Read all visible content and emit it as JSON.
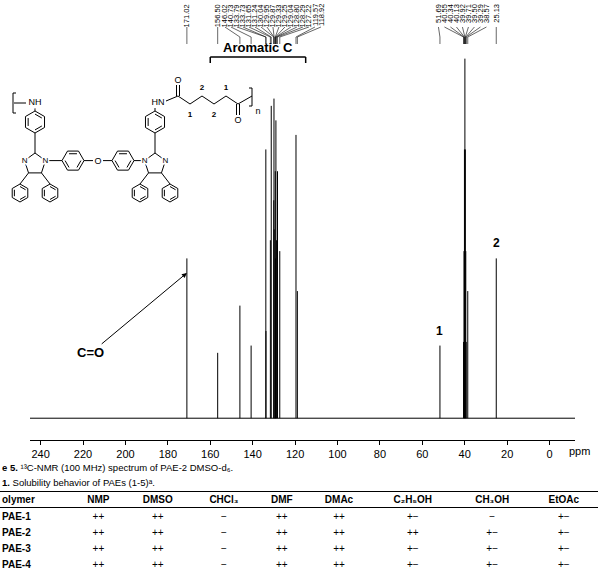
{
  "chart_data": {
    "type": "line",
    "x_label": "ppm",
    "xlim": [
      245,
      -12
    ],
    "xticks": [
      240,
      220,
      200,
      180,
      160,
      140,
      120,
      100,
      80,
      60,
      40,
      20,
      0
    ],
    "ylim": [
      -6,
      100
    ],
    "tick_labels": "x",
    "grid": false,
    "color": "#000000",
    "peaks": [
      {
        "shift": "171.02",
        "height": 44
      },
      {
        "shift": "156.50",
        "height": 18
      },
      {
        "shift": "146.02",
        "height": 31
      },
      {
        "shift": "140.73",
        "height": 20
      },
      {
        "shift": "133.79",
        "height": 74
      },
      {
        "shift": "133.73",
        "height": 24
      },
      {
        "shift": "131.65",
        "height": 49
      },
      {
        "shift": "131.24",
        "height": 86
      },
      {
        "shift": "130.04",
        "height": 60
      },
      {
        "shift": "129.95",
        "height": 88
      },
      {
        "shift": "129.87",
        "height": 52
      },
      {
        "shift": "129.33",
        "height": 68
      },
      {
        "shift": "129.25",
        "height": 44
      },
      {
        "shift": "129.04",
        "height": 82
      },
      {
        "shift": "128.80",
        "height": 49
      },
      {
        "shift": "128.29",
        "height": 68
      },
      {
        "shift": "127.22",
        "height": 46
      },
      {
        "shift": "119.57",
        "height": 78
      },
      {
        "shift": "118.92",
        "height": 35
      },
      {
        "shift": "51.69",
        "height": 20
      },
      {
        "shift": "40.55",
        "height": 21
      },
      {
        "shift": "40.34",
        "height": 46
      },
      {
        "shift": "40.13",
        "height": 74
      },
      {
        "shift": "39.92",
        "height": 99
      },
      {
        "shift": "39.71",
        "height": 74
      },
      {
        "shift": "39.50",
        "height": 46
      },
      {
        "shift": "39.29",
        "height": 21
      },
      {
        "shift": "38.57",
        "height": 35
      },
      {
        "shift": "25.13",
        "height": 44
      }
    ],
    "annotations": [
      {
        "text": "C=O",
        "x": 171.02
      },
      {
        "text": "1",
        "x": 51.69
      },
      {
        "text": "2",
        "x": 25.13
      }
    ],
    "bracket": {
      "text": "Aromatic C",
      "x": [
        160,
        115
      ]
    }
  },
  "structure": {
    "left_amine": "NH",
    "right_amine": "HN",
    "ether": "O",
    "carbonyl": "O",
    "imine": "N",
    "amine_n": "N",
    "chain": [
      "1",
      "2",
      "2",
      "1"
    ],
    "repeat": "n"
  },
  "caption": {
    "label": "e 5.",
    "text": "¹³C-NMR (100 MHz) spectrum of PAE-2 DMSO-d₆."
  },
  "table_title": {
    "label": "1.",
    "text": "Solubility behavior of PAEs (1-5)ᵃ."
  },
  "table": {
    "header": [
      "olymer",
      "NMP",
      "DMSO",
      "CHCl₃",
      "DMF",
      "DMAc",
      "C₂H₅OH",
      "CH₃OH",
      "EtOAc"
    ],
    "rows": [
      [
        "PAE-1",
        "++",
        "++",
        "−",
        "++",
        "++",
        "+−",
        "−",
        "+−"
      ],
      [
        "PAE-2",
        "++",
        "++",
        "−",
        "++",
        "++",
        "++",
        "+−",
        "+−"
      ],
      [
        "PAE-3",
        "++",
        "++",
        "−",
        "++",
        "++",
        "+−",
        "+−",
        "+−"
      ],
      [
        "PAE-4",
        "++",
        "++",
        "−",
        "++",
        "++",
        "+−",
        "+−",
        "+−"
      ]
    ]
  }
}
